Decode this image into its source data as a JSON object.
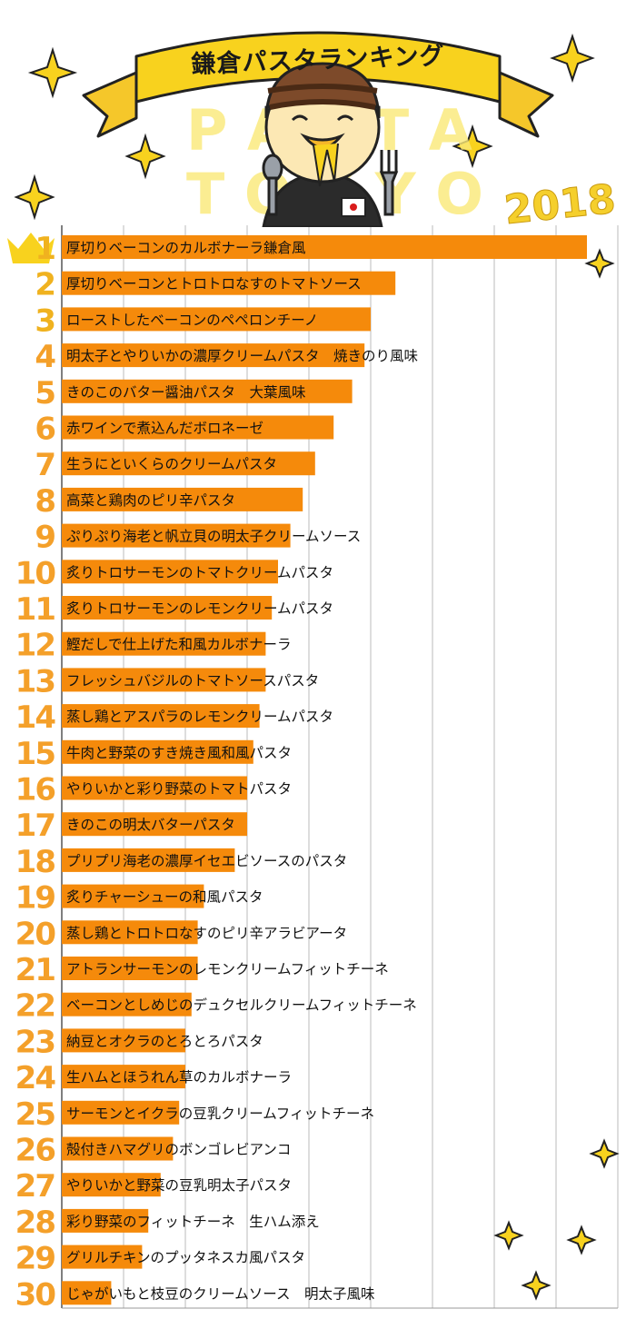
{
  "header": {
    "title": "鎌倉パスタランキング",
    "year": "2018"
  },
  "chart_data": {
    "type": "bar",
    "orientation": "horizontal",
    "title": "鎌倉パスタランキング",
    "xlim": [
      0,
      9
    ],
    "grid": true,
    "categories": [
      "厚切りベーコンのカルボナーラ鎌倉風",
      "厚切りベーコンとトロトロなすのトマトソース",
      "ローストしたベーコンのペペロンチーノ",
      "明太子とやりいかの濃厚クリームパスタ　焼きのり風味",
      "きのこのバター醤油パスタ　大葉風味",
      "赤ワインで煮込んだボロネーゼ",
      "生うにといくらのクリームパスタ",
      "高菜と鶏肉のピリ辛パスタ",
      "ぷりぷり海老と帆立貝の明太子クリームソース",
      "炙りトロサーモンのトマトクリームパスタ",
      "炙りトロサーモンのレモンクリームパスタ",
      "鰹だしで仕上げた和風カルボナーラ",
      "フレッシュバジルのトマトソースパスタ",
      "蒸し鶏とアスパラのレモンクリームパスタ",
      "牛肉と野菜のすき焼き風和風パスタ",
      "やりいかと彩り野菜のトマトパスタ",
      "きのこの明太バターパスタ",
      "プリプリ海老の濃厚イセエビソースのパスタ",
      "炙りチャーシューの和風パスタ",
      "蒸し鶏とトロトロなすのピリ辛アラビアータ",
      "アトランサーモンのレモンクリームフィットチーネ",
      "ベーコンとしめじのデュクセルクリームフィットチーネ",
      "納豆とオクラのとろとろパスタ",
      "生ハムとほうれん草のカルボナーラ",
      "サーモンとイクラの豆乳クリームフィットチーネ",
      "殻付きハマグリのボンゴレビアンコ",
      "やりいかと野菜の豆乳明太子パスタ",
      "彩り野菜のフィットチーネ　生ハム添え",
      "グリルチキンのプッタネスカ風パスタ",
      "じゃがいもと枝豆のクリームソース　明太子風味"
    ],
    "ranks": [
      "1",
      "2",
      "3",
      "4",
      "5",
      "6",
      "7",
      "8",
      "9",
      "10",
      "11",
      "12",
      "13",
      "14",
      "15",
      "16",
      "17",
      "18",
      "19",
      "20",
      "21",
      "22",
      "23",
      "24",
      "25",
      "26",
      "27",
      "28",
      "29",
      "30"
    ],
    "values": [
      8.5,
      5.4,
      5.0,
      4.9,
      4.7,
      4.4,
      4.1,
      3.9,
      3.7,
      3.5,
      3.4,
      3.3,
      3.3,
      3.2,
      3.1,
      3.0,
      3.0,
      2.8,
      2.3,
      2.2,
      2.2,
      2.1,
      2.0,
      2.0,
      1.9,
      1.8,
      1.6,
      1.4,
      1.3,
      0.8
    ],
    "bar_color": "#f58a0b",
    "rank_color": "#f4a02a",
    "crown_color": "#f8d21e"
  }
}
